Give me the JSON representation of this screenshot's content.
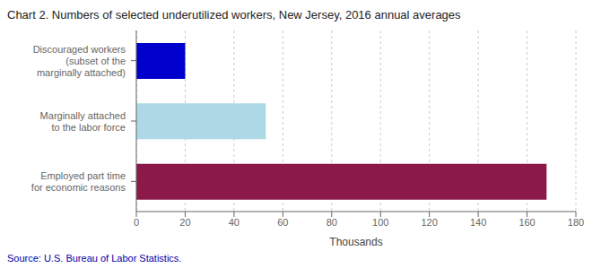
{
  "chart_data": {
    "type": "bar",
    "orientation": "horizontal",
    "title": "Chart 2. Numbers of selected underutilized workers, New Jersey, 2016 annual averages",
    "categories": [
      "Discouraged workers\n(subset of the\nmarginally attached)",
      "Marginally attached\nto the labor force",
      "Employed part time\nfor economic reasons"
    ],
    "values": [
      20,
      53,
      168
    ],
    "colors": [
      "#0000CC",
      "#ADD8E6",
      "#8B1A4A"
    ],
    "xlabel": "Thousands",
    "xlim": [
      0,
      180
    ],
    "xticks": [
      0,
      20,
      40,
      60,
      80,
      100,
      120,
      140,
      160,
      180
    ],
    "grid": true,
    "annotations": [
      "Source: U.S. Bureau of Labor Statistics."
    ]
  }
}
